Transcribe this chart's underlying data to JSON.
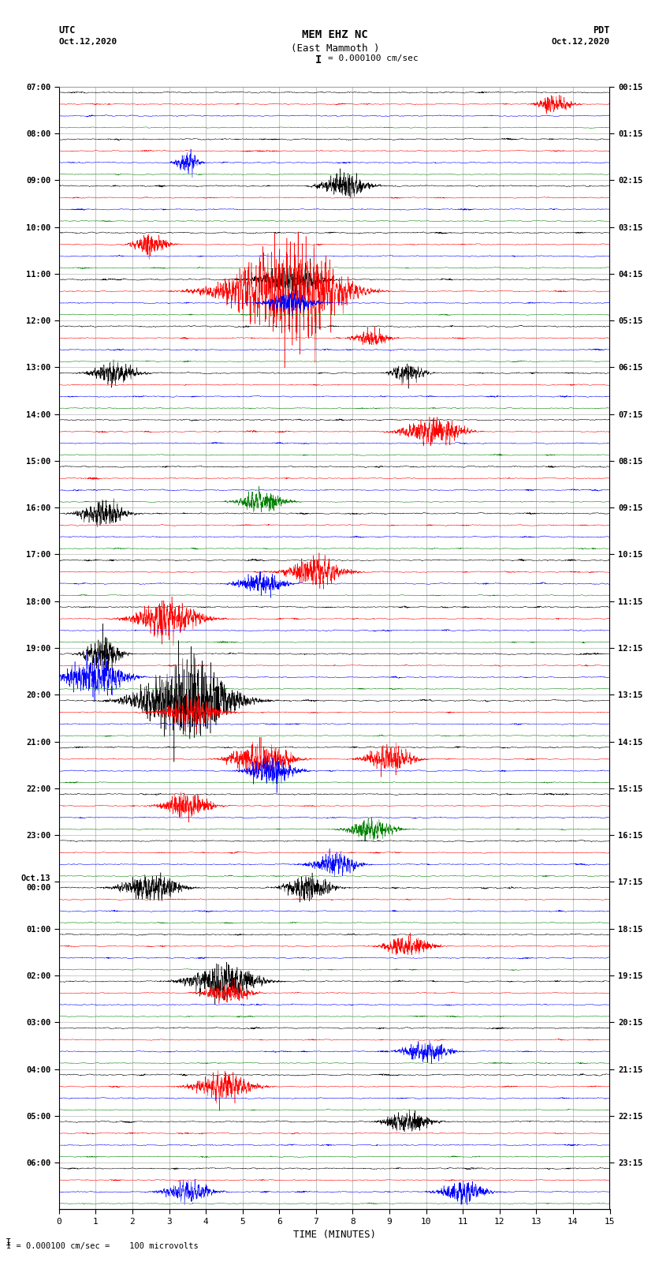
{
  "title_line1": "MEM EHZ NC",
  "title_line2": "(East Mammoth )",
  "scale_text": "I = 0.000100 cm/sec",
  "left_label_top": "UTC",
  "left_label_bot": "Oct.12,2020",
  "right_label_top": "PDT",
  "right_label_bot": "Oct.12,2020",
  "bottom_label": "TIME (MINUTES)",
  "bottom_note": "I = 0.000100 cm/sec =    100 microvolts",
  "xlim": [
    0,
    15
  ],
  "xticks": [
    0,
    1,
    2,
    3,
    4,
    5,
    6,
    7,
    8,
    9,
    10,
    11,
    12,
    13,
    14,
    15
  ],
  "utc_labels": [
    "07:00",
    "08:00",
    "09:00",
    "10:00",
    "11:00",
    "12:00",
    "13:00",
    "14:00",
    "15:00",
    "16:00",
    "17:00",
    "18:00",
    "19:00",
    "20:00",
    "21:00",
    "22:00",
    "23:00",
    "Oct.13\n00:00",
    "01:00",
    "02:00",
    "03:00",
    "04:00",
    "05:00",
    "06:00"
  ],
  "pdt_labels": [
    "00:15",
    "01:15",
    "02:15",
    "03:15",
    "04:15",
    "05:15",
    "06:15",
    "07:15",
    "08:15",
    "09:15",
    "10:15",
    "11:15",
    "12:15",
    "13:15",
    "14:15",
    "15:15",
    "16:15",
    "17:15",
    "18:15",
    "19:15",
    "20:15",
    "21:15",
    "22:15",
    "23:15"
  ],
  "colors": [
    "black",
    "red",
    "blue",
    "green"
  ],
  "n_hours": 24,
  "bg_color": "white",
  "grid_color": "#888888",
  "fig_width": 8.5,
  "fig_height": 16.13,
  "dpi": 100,
  "trace_lw": 0.35,
  "amp_scale": 0.35,
  "noise_base": 0.06,
  "n_points": 3000
}
